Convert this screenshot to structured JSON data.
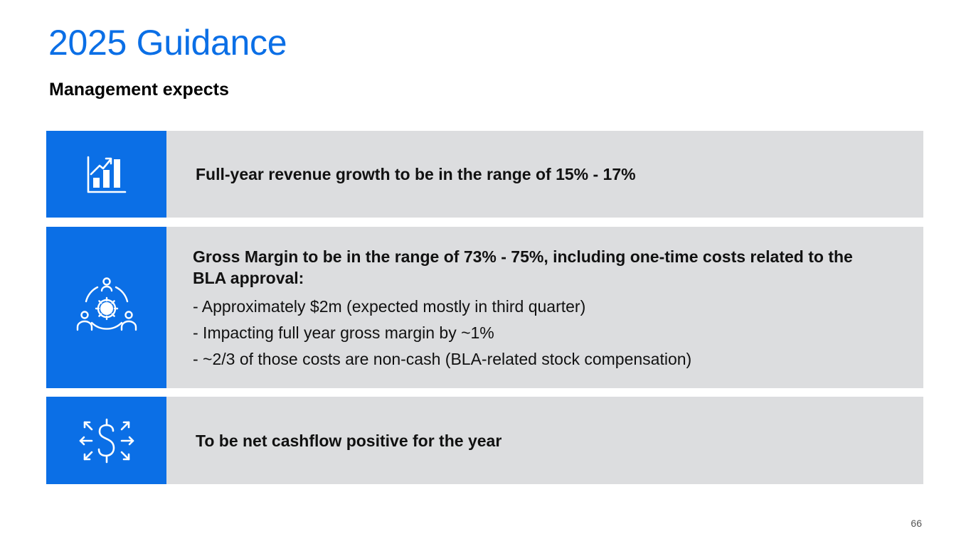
{
  "slide": {
    "title": "2025 Guidance",
    "subtitle": "Management expects",
    "page_number": "66"
  },
  "items": [
    {
      "icon": "bar-chart-growth-icon",
      "headline": "Full-year revenue growth to be in the range of 15% - 17%",
      "bullets": []
    },
    {
      "icon": "team-gear-icon",
      "headline": "Gross Margin to be in the range of 73% - 75%, including one-time costs related to the BLA approval:",
      "bullets": [
        "- Approximately $2m (expected mostly in third quarter)",
        "- Impacting full year gross margin by ~1%",
        "- ~2/3 of those costs are non-cash (BLA-related stock compensation)"
      ]
    },
    {
      "icon": "dollar-cashflow-icon",
      "headline": "To be net cashflow positive for the year",
      "bullets": []
    }
  ],
  "colors": {
    "accent": "#0b6fe6",
    "row_background": "#dcdddf",
    "text": "#111111"
  }
}
